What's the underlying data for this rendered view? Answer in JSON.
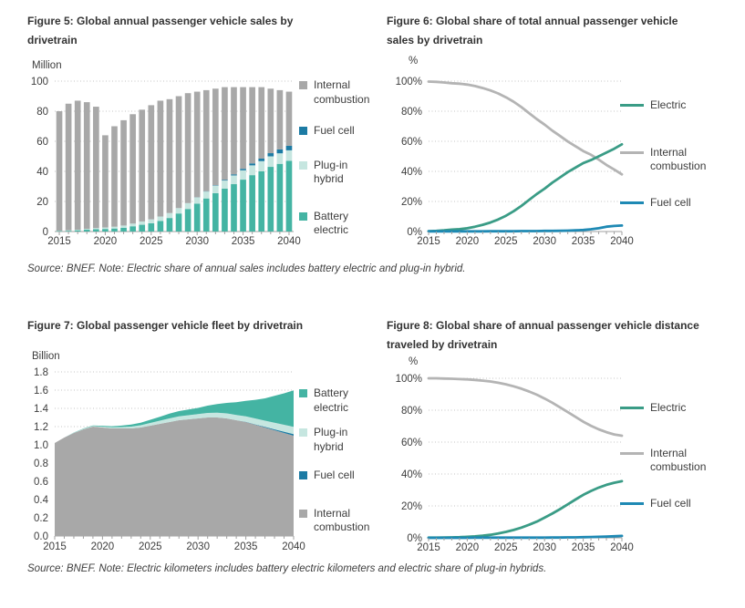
{
  "page": {
    "background": "#ffffff"
  },
  "colors": {
    "battery_electric": "#44B4A3",
    "plugin_hybrid": "#C6E6E0",
    "fuel_cell_bar": "#1C7BA4",
    "internal_combustion_bar": "#A8A8A8",
    "electric_line": "#3A9C86",
    "internal_combustion_line": "#B4B4B4",
    "fuel_cell_line": "#1E89B4",
    "grid": "#C4C4C4",
    "axis": "#A0A0A0",
    "text": "#3D3D3D"
  },
  "figures": [
    {
      "title_lines": [
        "Figure 5: Global annual passenger vehicle sales by",
        "drivetrain"
      ],
      "unit": "Million",
      "legend": [
        {
          "label": "Internal\ncombustion",
          "color": "#A8A8A8",
          "type": "square"
        },
        {
          "label": "Fuel cell",
          "color": "#1C7BA4",
          "type": "square"
        },
        {
          "label": "Plug-in\nhybrid",
          "color": "#C6E6E0",
          "type": "square"
        },
        {
          "label": "Battery\nelectric",
          "color": "#44B4A3",
          "type": "square"
        }
      ]
    },
    {
      "title_lines": [
        "Figure 6: Global share of total annual passenger vehicle",
        "sales by drivetrain"
      ],
      "unit": "%",
      "legend": [
        {
          "label": "Electric",
          "color": "#3A9C86",
          "type": "line"
        },
        {
          "label": "Internal\ncombustion",
          "color": "#B4B4B4",
          "type": "line"
        },
        {
          "label": "Fuel cell",
          "color": "#1E89B4",
          "type": "line"
        }
      ]
    },
    {
      "title_lines": [
        "Figure 7: Global passenger vehicle fleet by drivetrain",
        ""
      ],
      "unit": "Billion",
      "legend": [
        {
          "label": "Battery\nelectric",
          "color": "#44B4A3",
          "type": "square"
        },
        {
          "label": "Plug-in\nhybrid",
          "color": "#C6E6E0",
          "type": "square"
        },
        {
          "label": "Fuel cell",
          "color": "#1C7BA4",
          "type": "square"
        },
        {
          "label": "Internal\ncombustion",
          "color": "#A8A8A8",
          "type": "square"
        }
      ]
    },
    {
      "title_lines": [
        "Figure 8: Global share of annual passenger vehicle distance",
        "traveled by drivetrain"
      ],
      "unit": "%",
      "legend": [
        {
          "label": "Electric",
          "color": "#3A9C86",
          "type": "line"
        },
        {
          "label": "Internal\ncombustion",
          "color": "#B4B4B4",
          "type": "line"
        },
        {
          "label": "Fuel cell",
          "color": "#1E89B4",
          "type": "line"
        }
      ]
    }
  ],
  "chart_data": [
    {
      "type": "stacked_bar",
      "title": "Figure 5: Global annual passenger vehicle sales by drivetrain",
      "ylabel": "Million",
      "x": [
        2015,
        2016,
        2017,
        2018,
        2019,
        2020,
        2021,
        2022,
        2023,
        2024,
        2025,
        2026,
        2027,
        2028,
        2029,
        2030,
        2031,
        2032,
        2033,
        2034,
        2035,
        2036,
        2037,
        2038,
        2039,
        2040
      ],
      "ylim": [
        0,
        100
      ],
      "yticks": [
        0,
        20,
        40,
        60,
        80,
        100
      ],
      "ytick_labels": [
        "0",
        "20",
        "40",
        "60",
        "80",
        "100"
      ],
      "xticks": [
        2015,
        2020,
        2025,
        2030,
        2035,
        2040
      ],
      "grid": "dotted",
      "series": [
        {
          "name": "Battery electric",
          "color": "#44B4A3",
          "values": [
            0.3,
            0.5,
            0.8,
            1.2,
            1.5,
            1.7,
            2.0,
            2.5,
            3.5,
            4.5,
            5.5,
            7.0,
            9.0,
            12.0,
            15.0,
            18.5,
            22.0,
            25.5,
            28.5,
            31.5,
            34.5,
            37.5,
            40.0,
            43.0,
            45.0,
            47.0
          ]
        },
        {
          "name": "Plug-in hybrid",
          "color": "#C6E6E0",
          "values": [
            0.2,
            0.3,
            0.4,
            0.6,
            0.8,
            1.0,
            1.2,
            1.5,
            1.8,
            2.2,
            2.6,
            3.0,
            3.3,
            3.6,
            3.9,
            4.2,
            4.6,
            5.0,
            5.4,
            5.8,
            6.2,
            6.5,
            6.8,
            7.0,
            7.0,
            7.0
          ]
        },
        {
          "name": "Fuel cell",
          "color": "#1C7BA4",
          "values": [
            0,
            0,
            0,
            0,
            0,
            0,
            0,
            0,
            0,
            0,
            0,
            0,
            0,
            0,
            0,
            0.1,
            0.2,
            0.3,
            0.5,
            0.7,
            1.0,
            1.3,
            1.7,
            2.1,
            2.6,
            3.0
          ]
        },
        {
          "name": "Internal combustion",
          "color": "#A8A8A8",
          "values": [
            79.5,
            84.2,
            85.8,
            84.2,
            80.7,
            61.3,
            66.8,
            70.0,
            72.7,
            74.3,
            75.9,
            77.0,
            75.7,
            74.4,
            73.1,
            70.2,
            67.2,
            64.2,
            61.6,
            58.0,
            54.3,
            50.7,
            47.5,
            42.9,
            39.4,
            36.0
          ]
        }
      ]
    },
    {
      "type": "line",
      "title": "Figure 6: Global share of total annual passenger vehicle sales by drivetrain",
      "ylabel": "%",
      "x": [
        2015,
        2016,
        2017,
        2018,
        2019,
        2020,
        2021,
        2022,
        2023,
        2024,
        2025,
        2026,
        2027,
        2028,
        2029,
        2030,
        2031,
        2032,
        2033,
        2034,
        2035,
        2036,
        2037,
        2038,
        2039,
        2040
      ],
      "ylim": [
        0,
        100
      ],
      "yticks": [
        0,
        20,
        40,
        60,
        80,
        100
      ],
      "ytick_labels": [
        "0%",
        "20%",
        "40%",
        "60%",
        "80%",
        "100%"
      ],
      "xticks": [
        2015,
        2020,
        2025,
        2030,
        2035,
        2040
      ],
      "grid": "dotted",
      "series": [
        {
          "name": "Internal combustion",
          "color": "#B4B4B4",
          "values": [
            99.7,
            99.5,
            99.1,
            98.6,
            98.3,
            97.7,
            96.7,
            95.4,
            93.8,
            91.8,
            89.3,
            86.3,
            82.7,
            78.7,
            74.7,
            71.1,
            67.1,
            63.5,
            59.9,
            56.7,
            53.5,
            51.0,
            47.8,
            44.3,
            41.3,
            38.0
          ]
        },
        {
          "name": "Electric",
          "color": "#3A9C86",
          "values": [
            0.2,
            0.4,
            0.8,
            1.3,
            1.6,
            2.2,
            3.2,
            4.5,
            6.0,
            8.0,
            10.5,
            13.5,
            17.0,
            21.0,
            25.0,
            28.5,
            32.5,
            36.0,
            39.5,
            42.5,
            45.5,
            47.5,
            50.0,
            52.5,
            55.0,
            58.0
          ]
        },
        {
          "name": "Fuel cell",
          "color": "#1E89B4",
          "values": [
            0.1,
            0.1,
            0.1,
            0.1,
            0.1,
            0.1,
            0.1,
            0.1,
            0.2,
            0.2,
            0.2,
            0.2,
            0.3,
            0.3,
            0.3,
            0.4,
            0.4,
            0.5,
            0.6,
            0.8,
            1.0,
            1.5,
            2.2,
            3.2,
            3.7,
            4.0
          ]
        }
      ]
    },
    {
      "type": "stacked_area",
      "title": "Figure 7: Global passenger vehicle fleet by drivetrain",
      "ylabel": "Billion",
      "x": [
        2015,
        2016,
        2017,
        2018,
        2019,
        2020,
        2021,
        2022,
        2023,
        2024,
        2025,
        2026,
        2027,
        2028,
        2029,
        2030,
        2031,
        2032,
        2033,
        2034,
        2035,
        2036,
        2037,
        2038,
        2039,
        2040
      ],
      "ylim": [
        0,
        1.8
      ],
      "yticks": [
        0,
        0.2,
        0.4,
        0.6,
        0.8,
        1.0,
        1.2,
        1.4,
        1.6,
        1.8
      ],
      "ytick_labels": [
        "0.0",
        "0.2",
        "0.4",
        "0.6",
        "0.8",
        "1.0",
        "1.2",
        "1.4",
        "1.6",
        "1.8"
      ],
      "xticks": [
        2015,
        2020,
        2025,
        2030,
        2035,
        2040
      ],
      "grid": "dotted",
      "series": [
        {
          "name": "Internal combustion",
          "color": "#A8A8A8",
          "values": [
            1.02,
            1.08,
            1.13,
            1.17,
            1.2,
            1.19,
            1.18,
            1.18,
            1.18,
            1.19,
            1.21,
            1.23,
            1.25,
            1.27,
            1.28,
            1.29,
            1.3,
            1.3,
            1.29,
            1.27,
            1.25,
            1.22,
            1.19,
            1.16,
            1.13,
            1.1
          ]
        },
        {
          "name": "Fuel cell",
          "color": "#1C7BA4",
          "values": [
            0,
            0,
            0,
            0,
            0,
            0,
            0,
            0,
            0,
            0,
            0,
            0,
            0,
            0,
            0,
            0,
            0,
            0,
            0,
            0,
            0.002,
            0.004,
            0.007,
            0.01,
            0.014,
            0.018
          ]
        },
        {
          "name": "Plug-in hybrid",
          "color": "#C6E6E0",
          "values": [
            0,
            0,
            0.003,
            0.005,
            0.007,
            0.01,
            0.012,
            0.015,
            0.02,
            0.025,
            0.03,
            0.035,
            0.04,
            0.042,
            0.045,
            0.047,
            0.05,
            0.052,
            0.055,
            0.058,
            0.06,
            0.065,
            0.068,
            0.072,
            0.076,
            0.08
          ]
        },
        {
          "name": "Battery electric",
          "color": "#44B4A3",
          "values": [
            0,
            0,
            0.002,
            0.004,
            0.006,
            0.009,
            0.012,
            0.016,
            0.022,
            0.028,
            0.035,
            0.043,
            0.052,
            0.058,
            0.063,
            0.068,
            0.08,
            0.095,
            0.115,
            0.14,
            0.17,
            0.205,
            0.245,
            0.295,
            0.345,
            0.4
          ]
        }
      ]
    },
    {
      "type": "line",
      "title": "Figure 8: Global share of annual passenger vehicle distance traveled by drivetrain",
      "ylabel": "%",
      "x": [
        2015,
        2016,
        2017,
        2018,
        2019,
        2020,
        2021,
        2022,
        2023,
        2024,
        2025,
        2026,
        2027,
        2028,
        2029,
        2030,
        2031,
        2032,
        2033,
        2034,
        2035,
        2036,
        2037,
        2038,
        2039,
        2040
      ],
      "ylim": [
        0,
        100
      ],
      "yticks": [
        0,
        20,
        40,
        60,
        80,
        100
      ],
      "ytick_labels": [
        "0%",
        "20%",
        "40%",
        "60%",
        "80%",
        "100%"
      ],
      "xticks": [
        2015,
        2020,
        2025,
        2030,
        2035,
        2040
      ],
      "grid": "dotted",
      "series": [
        {
          "name": "Internal combustion",
          "color": "#B4B4B4",
          "values": [
            100,
            100,
            99.8,
            99.7,
            99.5,
            99.3,
            99.0,
            98.5,
            98.0,
            97.2,
            96.2,
            95.0,
            93.5,
            91.7,
            89.7,
            87.3,
            84.7,
            81.8,
            78.8,
            75.8,
            72.8,
            70.2,
            68.0,
            66.2,
            64.8,
            64.0
          ]
        },
        {
          "name": "Electric",
          "color": "#3A9C86",
          "values": [
            0.1,
            0.1,
            0.2,
            0.3,
            0.4,
            0.6,
            0.9,
            1.3,
            1.9,
            2.7,
            3.7,
            4.9,
            6.4,
            8.2,
            10.2,
            12.6,
            15.2,
            18.0,
            21.0,
            24.0,
            26.9,
            29.4,
            31.5,
            33.2,
            34.5,
            35.5
          ]
        },
        {
          "name": "Fuel cell",
          "color": "#1E89B4",
          "values": [
            0,
            0,
            0,
            0,
            0,
            0,
            0.1,
            0.1,
            0.1,
            0.1,
            0.1,
            0.1,
            0.1,
            0.1,
            0.1,
            0.1,
            0.2,
            0.2,
            0.3,
            0.3,
            0.4,
            0.5,
            0.6,
            0.8,
            1.0,
            1.2
          ]
        }
      ]
    }
  ],
  "notes": [
    "Source: BNEF. Note: Electric share of annual sales includes battery electric and plug-in hybrid.",
    "Source: BNEF. Note: Electric kilometers includes battery electric kilometers and electric share of plug-in hybrids."
  ]
}
